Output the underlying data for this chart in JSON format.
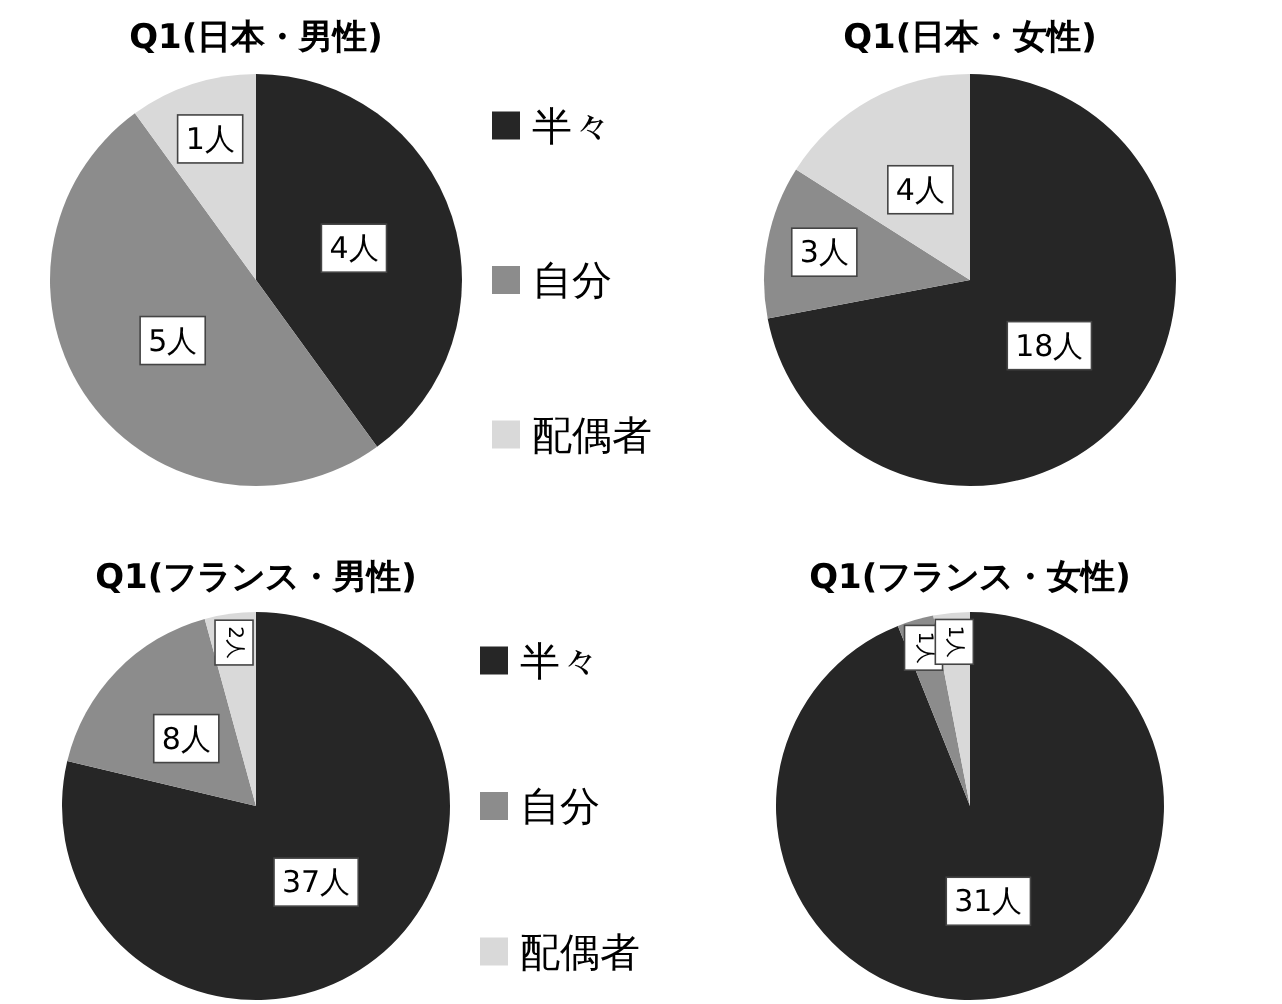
{
  "chart_data": [
    {
      "type": "pie",
      "title": "Q1(日本・男性)",
      "categories": [
        "半々",
        "自分",
        "配偶者"
      ],
      "values": [
        4,
        5,
        1
      ],
      "value_labels": [
        "4人",
        "5人",
        "1人"
      ],
      "colors": [
        "#262626",
        "#8c8c8c",
        "#d9d9d9"
      ],
      "legend": "right"
    },
    {
      "type": "pie",
      "title": "Q1(日本・女性)",
      "categories": [
        null,
        null,
        null
      ],
      "values": [
        18,
        3,
        4
      ],
      "value_labels": [
        "18人",
        "3人",
        "4人"
      ],
      "colors": [
        "#262626",
        "#8c8c8c",
        "#d9d9d9"
      ]
    },
    {
      "type": "pie",
      "title": "Q1(フランス・男性)",
      "categories": [
        "半々",
        "自分",
        "配偶者"
      ],
      "values": [
        37,
        8,
        2
      ],
      "value_labels": [
        "37人",
        "8人",
        "2人"
      ],
      "colors": [
        "#262626",
        "#8c8c8c",
        "#d9d9d9"
      ],
      "legend": "right"
    },
    {
      "type": "pie",
      "title": "Q1(フランス・女性)",
      "categories": [
        null,
        null,
        null
      ],
      "values": [
        31,
        1,
        1
      ],
      "value_labels": [
        "31人",
        "1人",
        "1人"
      ],
      "colors": [
        "#262626",
        "#8c8c8c",
        "#d9d9d9"
      ]
    }
  ]
}
